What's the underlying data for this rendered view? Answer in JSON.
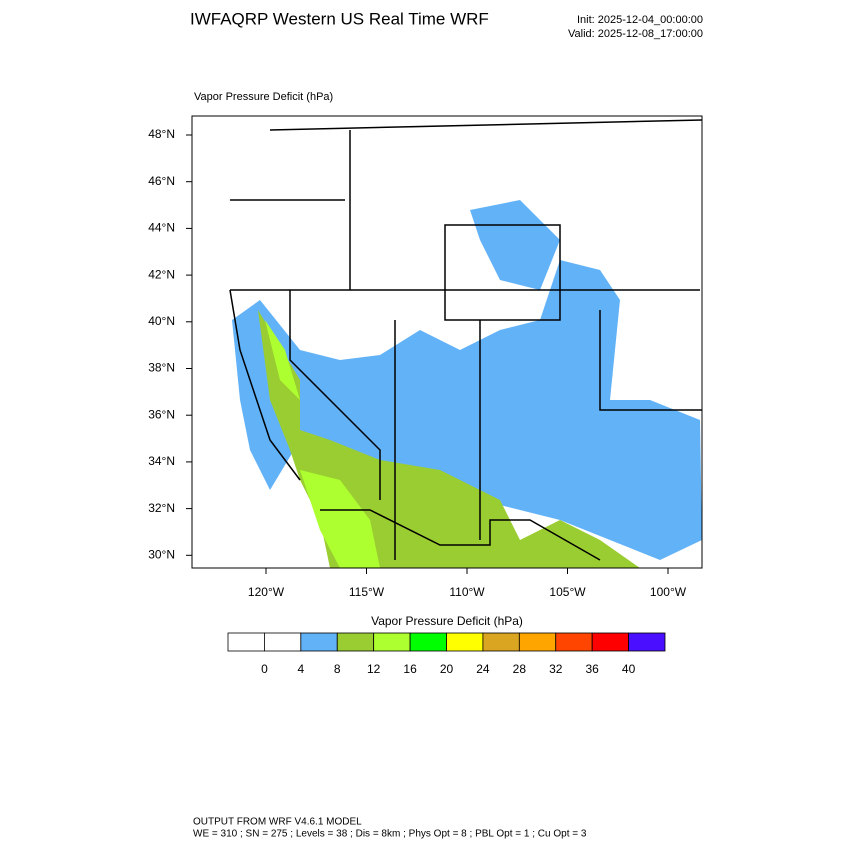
{
  "header": {
    "title": "IWFAQRP Western US Real Time WRF",
    "init": "Init: 2025-12-04_00:00:00",
    "valid": "Valid: 2025-12-08_17:00:00"
  },
  "map": {
    "title": "Vapor Pressure Deficit   (hPa)",
    "lat_labels": [
      "48°N",
      "46°N",
      "44°N",
      "42°N",
      "40°N",
      "38°N",
      "36°N",
      "34°N",
      "32°N",
      "30°N"
    ],
    "lon_labels": [
      "120°W",
      "115°W",
      "110°W",
      "105°W",
      "100°W"
    ]
  },
  "colorbar": {
    "title": "Vapor Pressure Deficit  (hPa)",
    "colors": [
      "#ffffff",
      "#ffffff",
      "#62b2f8",
      "#9acd32",
      "#adff2f",
      "#00ff00",
      "#ffff00",
      "#daa520",
      "#ffa500",
      "#ff4500",
      "#ff0000",
      "#4b0fff"
    ],
    "labels": [
      "0",
      "4",
      "8",
      "12",
      "16",
      "20",
      "24",
      "28",
      "32",
      "36",
      "40"
    ]
  },
  "footer": {
    "line1": "OUTPUT FROM WRF V4.6.1 MODEL",
    "line2": "WE = 310 ; SN = 275 ; Levels = 38 ; Dis = 8km ; Phys Opt = 8 ; PBL Opt = 1 ; Cu Opt = 3"
  }
}
